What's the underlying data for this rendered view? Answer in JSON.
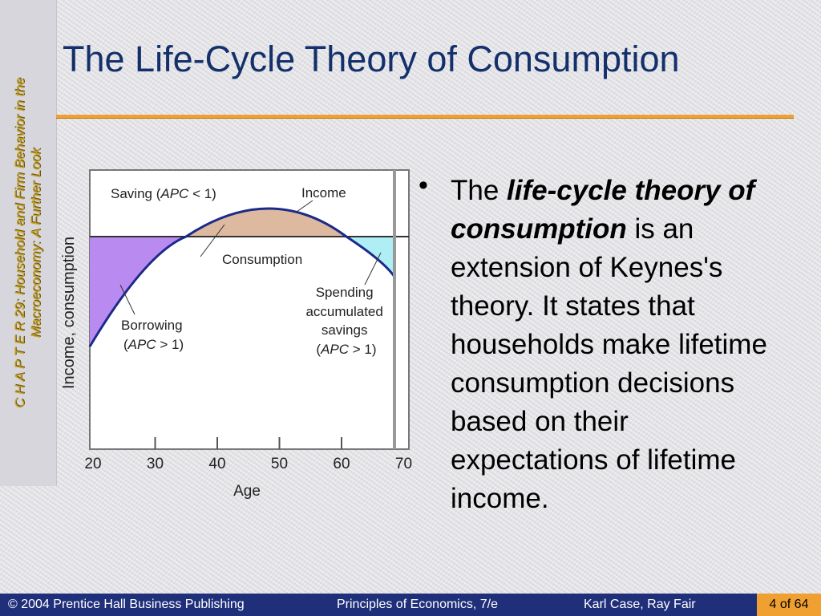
{
  "side": {
    "line1": "C H A P T E R  29:  Household and Firm Behavior in the",
    "line2": "Macroeconomy:  A Further Look"
  },
  "title": "The Life-Cycle Theory of Consumption",
  "bullet": {
    "part1": "The ",
    "bold": "life-cycle theory of consumption",
    "part2": " is an extension of Keynes's theory. It states that households make lifetime consumption decisions based on their expectations of lifetime income."
  },
  "chart_data": {
    "type": "area",
    "xlabel": "Age",
    "ylabel": "Income, consumption",
    "x_ticks": [
      "20",
      "30",
      "40",
      "50",
      "60",
      "70"
    ],
    "series": [
      {
        "name": "Income"
      },
      {
        "name": "Consumption"
      }
    ],
    "annotations": {
      "saving": [
        "Saving (",
        "APC",
        " < 1)"
      ],
      "borrowing": [
        "Borrowing",
        "(",
        "APC",
        " > 1)"
      ],
      "spending": [
        "Spending",
        "accumulated",
        "savings",
        "(",
        "APC",
        " > 1)"
      ]
    },
    "colors": {
      "income_curve": "#1b2a8a",
      "saving_fill": "#dcb99f",
      "borrowing_fill": "#b98af0",
      "spending_fill": "#aeeef4"
    }
  },
  "footer": {
    "publisher": "© 2004 Prentice Hall Business Publishing",
    "book": "Principles of Economics, 7/e",
    "authors": "Karl Case, Ray Fair",
    "page": "4 of 64"
  }
}
